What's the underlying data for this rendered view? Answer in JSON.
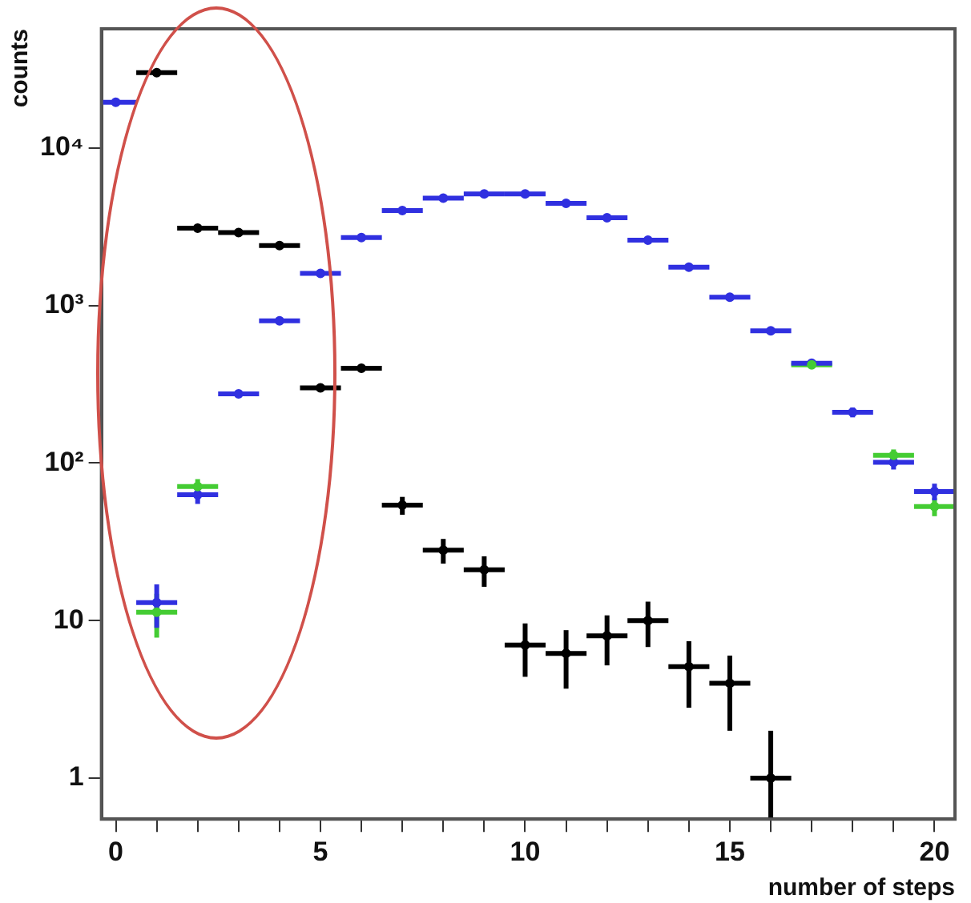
{
  "chart_data": {
    "type": "scatter",
    "xlabel": "number of steps",
    "ylabel": "counts",
    "x": [
      0,
      1,
      2,
      3,
      4,
      5,
      6,
      7,
      8,
      9,
      10,
      11,
      12,
      13,
      14,
      15,
      16,
      17,
      18,
      19,
      20
    ],
    "xlim": [
      -0.35,
      20.5
    ],
    "xticks": [
      0,
      {
        "value": 1,
        "label": null
      },
      {
        "value": 2,
        "label": null
      },
      {
        "value": 3,
        "label": null
      },
      {
        "value": 4,
        "label": null
      },
      5,
      {
        "value": 6,
        "label": null
      },
      {
        "value": 7,
        "label": null
      },
      {
        "value": 8,
        "label": null
      },
      {
        "value": 9,
        "label": null
      },
      10,
      {
        "value": 11,
        "label": null
      },
      {
        "value": 12,
        "label": null
      },
      {
        "value": 13,
        "label": null
      },
      {
        "value": 14,
        "label": null
      },
      15,
      {
        "value": 16,
        "label": null
      },
      {
        "value": 17,
        "label": null
      },
      {
        "value": 18,
        "label": null
      },
      {
        "value": 19,
        "label": null
      },
      20
    ],
    "ylim": [
      0.55,
      57000
    ],
    "yticks": [
      1,
      10,
      {
        "value": 100,
        "label": "10²"
      },
      {
        "value": 1000,
        "label": "10³"
      },
      {
        "value": 10000,
        "label": "10⁴"
      }
    ],
    "log": "y",
    "grid": false,
    "legend": false,
    "marker": "circle",
    "series": [
      {
        "color": "#44cc33",
        "values": [
          null,
          11.3,
          71,
          null,
          null,
          null,
          null,
          null,
          null,
          null,
          null,
          null,
          null,
          null,
          null,
          null,
          null,
          420,
          null,
          112,
          53
        ],
        "errors": [
          null,
          3.5,
          8,
          null,
          null,
          null,
          null,
          null,
          null,
          null,
          null,
          null,
          null,
          null,
          null,
          null,
          null,
          null,
          null,
          10,
          7
        ],
        "xerrors": [
          null,
          0.5,
          0.5,
          null,
          null,
          null,
          null,
          null,
          null,
          null,
          null,
          null,
          null,
          null,
          null,
          null,
          null,
          0.5,
          null,
          0.5,
          0.5
        ]
      },
      {
        "color": "#3030e0",
        "values": [
          19500,
          13,
          63,
          275,
          800,
          1600,
          2700,
          4000,
          4800,
          5100,
          5100,
          4450,
          3600,
          2600,
          1750,
          1130,
          690,
          430,
          210,
          101,
          66
        ],
        "errors": [
          null,
          4,
          8,
          null,
          null,
          null,
          null,
          null,
          null,
          null,
          null,
          null,
          null,
          null,
          null,
          null,
          null,
          null,
          15,
          10,
          8
        ],
        "xerrors": [
          0.5,
          0.5,
          0.5,
          0.5,
          0.5,
          0.5,
          0.5,
          0.5,
          0.5,
          0.5,
          0.5,
          0.5,
          0.5,
          0.5,
          0.5,
          0.5,
          0.5,
          0.5,
          0.5,
          0.5,
          0.5
        ]
      },
      {
        "color": "#000000",
        "values": [
          null,
          30000,
          3100,
          2900,
          2400,
          300,
          400,
          54,
          28,
          21,
          7,
          6.2,
          8,
          10,
          5.1,
          4,
          1,
          null,
          null,
          null,
          null
        ],
        "errors": [
          null,
          null,
          null,
          null,
          null,
          null,
          null,
          7,
          5,
          4.6,
          2.6,
          2.5,
          2.8,
          3.2,
          2.3,
          2,
          [
            0.55,
            2
          ],
          null,
          null,
          null,
          null
        ],
        "xerrors": [
          null,
          0.5,
          0.5,
          0.5,
          0.5,
          0.5,
          0.5,
          0.5,
          0.5,
          0.5,
          0.5,
          0.5,
          0.5,
          0.5,
          0.5,
          0.5,
          0.5,
          null,
          null,
          null,
          null
        ]
      }
    ]
  }
}
